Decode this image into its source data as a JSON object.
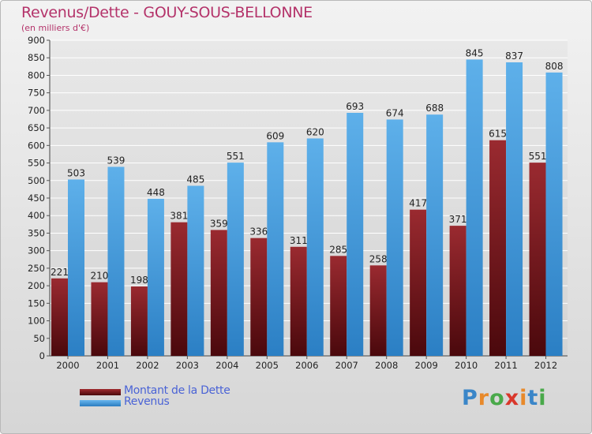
{
  "chart_data": {
    "type": "bar",
    "title": "Revenus/Dette - GOUY-SOUS-BELLONNE",
    "subtitle": "(en milliers d'€)",
    "categories": [
      "2000",
      "2001",
      "2002",
      "2003",
      "2004",
      "2005",
      "2006",
      "2007",
      "2008",
      "2009",
      "2010",
      "2011",
      "2012"
    ],
    "series": [
      {
        "name": "Montant de la Dette",
        "color": "#7a1418",
        "values": [
          221,
          210,
          198,
          381,
          359,
          336,
          311,
          285,
          258,
          417,
          371,
          615,
          551
        ]
      },
      {
        "name": "Revenus",
        "color": "#3d98dc",
        "values": [
          503,
          539,
          448,
          485,
          551,
          609,
          620,
          693,
          674,
          688,
          845,
          837,
          808
        ]
      }
    ],
    "ylim": [
      0,
      900
    ],
    "yticks": [
      0,
      50,
      100,
      150,
      200,
      250,
      300,
      350,
      400,
      450,
      500,
      550,
      600,
      650,
      700,
      750,
      800,
      850,
      900
    ],
    "grid": true,
    "legend": "bottom-left"
  },
  "logo": {
    "letters": [
      "P",
      "r",
      "o",
      "x",
      "i",
      "t",
      "i"
    ],
    "colors": [
      "#3a86c8",
      "#e8892a",
      "#49a94a",
      "#d9372b",
      "#e8892a",
      "#3a86c8",
      "#49a94a"
    ]
  }
}
